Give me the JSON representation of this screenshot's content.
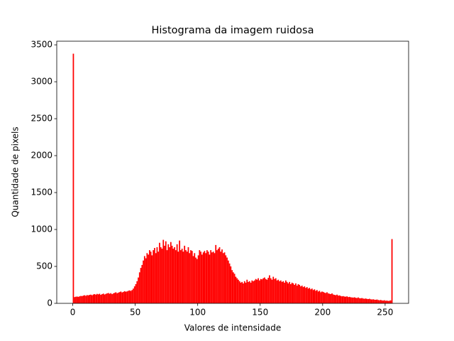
{
  "chart_data": {
    "type": "histogram",
    "title": "Histograma da imagem ruidosa",
    "x_label": "Valores de intensidade",
    "y_label": "Quantidade de pixels",
    "color": "#ff0000",
    "xlim": [
      -12.8,
      268.8
    ],
    "ylim": [
      0,
      3549
    ],
    "xticks": [
      0,
      50,
      100,
      150,
      200,
      250
    ],
    "yticks": [
      0,
      500,
      1000,
      1500,
      2000,
      2500,
      3000,
      3500
    ],
    "bins": [
      0,
      1,
      2,
      3,
      4,
      5,
      6,
      7,
      8,
      9,
      10,
      11,
      12,
      13,
      14,
      15,
      16,
      17,
      18,
      19,
      20,
      21,
      22,
      23,
      24,
      25,
      26,
      27,
      28,
      29,
      30,
      31,
      32,
      33,
      34,
      35,
      36,
      37,
      38,
      39,
      40,
      41,
      42,
      43,
      44,
      45,
      46,
      47,
      48,
      49,
      50,
      51,
      52,
      53,
      54,
      55,
      56,
      57,
      58,
      59,
      60,
      61,
      62,
      63,
      64,
      65,
      66,
      67,
      68,
      69,
      70,
      71,
      72,
      73,
      74,
      75,
      76,
      77,
      78,
      79,
      80,
      81,
      82,
      83,
      84,
      85,
      86,
      87,
      88,
      89,
      90,
      91,
      92,
      93,
      94,
      95,
      96,
      97,
      98,
      99,
      100,
      101,
      102,
      103,
      104,
      105,
      106,
      107,
      108,
      109,
      110,
      111,
      112,
      113,
      114,
      115,
      116,
      117,
      118,
      119,
      120,
      121,
      122,
      123,
      124,
      125,
      126,
      127,
      128,
      129,
      130,
      131,
      132,
      133,
      134,
      135,
      136,
      137,
      138,
      139,
      140,
      141,
      142,
      143,
      144,
      145,
      146,
      147,
      148,
      149,
      150,
      151,
      152,
      153,
      154,
      155,
      156,
      157,
      158,
      159,
      160,
      161,
      162,
      163,
      164,
      165,
      166,
      167,
      168,
      169,
      170,
      171,
      172,
      173,
      174,
      175,
      176,
      177,
      178,
      179,
      180,
      181,
      182,
      183,
      184,
      185,
      186,
      187,
      188,
      189,
      190,
      191,
      192,
      193,
      194,
      195,
      196,
      197,
      198,
      199,
      200,
      201,
      202,
      203,
      204,
      205,
      206,
      207,
      208,
      209,
      210,
      211,
      212,
      213,
      214,
      215,
      216,
      217,
      218,
      219,
      220,
      221,
      222,
      223,
      224,
      225,
      226,
      227,
      228,
      229,
      230,
      231,
      232,
      233,
      234,
      235,
      236,
      237,
      238,
      239,
      240,
      241,
      242,
      243,
      244,
      245,
      246,
      247,
      248,
      249,
      250,
      251,
      252,
      253,
      254,
      255,
      256
    ],
    "values": [
      3380,
      85,
      90,
      92,
      88,
      95,
      100,
      98,
      105,
      110,
      102,
      112,
      108,
      115,
      118,
      110,
      120,
      125,
      118,
      128,
      122,
      130,
      115,
      125,
      132,
      120,
      128,
      135,
      140,
      130,
      138,
      125,
      135,
      142,
      150,
      138,
      145,
      152,
      160,
      148,
      155,
      165,
      158,
      162,
      170,
      175,
      168,
      180,
      200,
      230,
      260,
      300,
      350,
      420,
      480,
      520,
      580,
      640,
      610,
      680,
      660,
      720,
      700,
      650,
      720,
      750,
      680,
      760,
      700,
      820,
      760,
      740,
      860,
      780,
      840,
      720,
      800,
      760,
      830,
      780,
      740,
      760,
      720,
      800,
      700,
      850,
      720,
      740,
      700,
      780,
      720,
      700,
      760,
      680,
      720,
      710,
      640,
      680,
      620,
      600,
      650,
      720,
      700,
      660,
      690,
      710,
      680,
      720,
      700,
      660,
      720,
      690,
      700,
      680,
      790,
      720,
      740,
      760,
      700,
      730,
      680,
      690,
      650,
      620,
      580,
      540,
      500,
      450,
      420,
      400,
      360,
      340,
      320,
      300,
      280,
      290,
      270,
      300,
      280,
      320,
      290,
      300,
      280,
      310,
      300,
      310,
      330,
      320,
      340,
      310,
      330,
      325,
      340,
      350,
      330,
      320,
      345,
      380,
      340,
      320,
      360,
      330,
      340,
      310,
      320,
      300,
      310,
      290,
      300,
      280,
      310,
      290,
      270,
      290,
      260,
      280,
      270,
      250,
      270,
      240,
      260,
      250,
      230,
      240,
      220,
      230,
      210,
      220,
      200,
      210,
      190,
      200,
      180,
      190,
      170,
      180,
      160,
      170,
      150,
      160,
      155,
      145,
      140,
      150,
      135,
      130,
      125,
      135,
      120,
      115,
      110,
      118,
      105,
      108,
      100,
      95,
      98,
      92,
      90,
      95,
      85,
      88,
      82,
      80,
      78,
      82,
      75,
      72,
      80,
      70,
      68,
      72,
      65,
      62,
      66,
      60,
      58,
      62,
      55,
      52,
      55,
      50,
      48,
      52,
      45,
      42,
      46,
      40,
      38,
      42,
      35,
      38,
      32,
      36,
      40,
      870
    ]
  }
}
